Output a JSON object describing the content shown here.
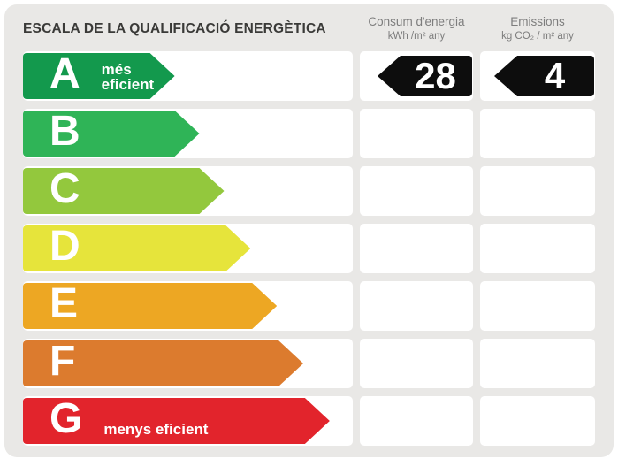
{
  "title": "ESCALA DE LA QUALIFICACIÓ ENERGÈTICA",
  "columns": [
    {
      "title": "Consum d'energia",
      "unit": "kWh /m² any"
    },
    {
      "title": "Emissions",
      "unit": "kg CO₂ / m² any"
    }
  ],
  "colors": {
    "page_bg": "#ffffff",
    "panel_bg": "#e9e8e6",
    "title_text": "#3a3a38",
    "header_text": "#7d7d7d",
    "track_bg": "#ffffff",
    "value_arrow_bg": "#0d0d0d",
    "value_text": "#ffffff",
    "letter_text": "#ffffff"
  },
  "ratings": [
    {
      "letter": "A",
      "sublabel": "més eficient",
      "color": "#13994d",
      "width_pct": 46,
      "consum": "28",
      "emissions": "4"
    },
    {
      "letter": "B",
      "sublabel": "",
      "color": "#2fb457",
      "width_pct": 53.5,
      "consum": null,
      "emissions": null
    },
    {
      "letter": "C",
      "sublabel": "",
      "color": "#93c83d",
      "width_pct": 61,
      "consum": null,
      "emissions": null
    },
    {
      "letter": "D",
      "sublabel": "",
      "color": "#e6e43b",
      "width_pct": 69,
      "consum": null,
      "emissions": null
    },
    {
      "letter": "E",
      "sublabel": "",
      "color": "#eda723",
      "width_pct": 77,
      "consum": null,
      "emissions": null
    },
    {
      "letter": "F",
      "sublabel": "",
      "color": "#dc7b2e",
      "width_pct": 85,
      "consum": null,
      "emissions": null
    },
    {
      "letter": "G",
      "sublabel": "menys eficient",
      "color": "#e2242c",
      "width_pct": 93,
      "consum": null,
      "emissions": null
    }
  ],
  "chart_data": {
    "type": "bar",
    "orientation": "horizontal",
    "title": "ESCALA DE LA QUALIFICACIÓ ENERGÈTICA",
    "categories": [
      "A",
      "B",
      "C",
      "D",
      "E",
      "F",
      "G"
    ],
    "bar_length_pct": [
      46,
      53.5,
      61,
      69,
      77,
      85,
      93
    ],
    "bar_colors": [
      "#13994d",
      "#2fb457",
      "#93c83d",
      "#e6e43b",
      "#eda723",
      "#dc7b2e",
      "#e2242c"
    ],
    "scale_annotations": {
      "A": "més eficient",
      "G": "menys eficient"
    },
    "selected_rating": "A",
    "series": [
      {
        "name": "Consum d'energia (kWh /m² any)",
        "values": [
          28,
          null,
          null,
          null,
          null,
          null,
          null
        ]
      },
      {
        "name": "Emissions (kg CO₂ / m² any)",
        "values": [
          4,
          null,
          null,
          null,
          null,
          null,
          null
        ]
      }
    ],
    "legend_position": "top",
    "grid": false
  }
}
